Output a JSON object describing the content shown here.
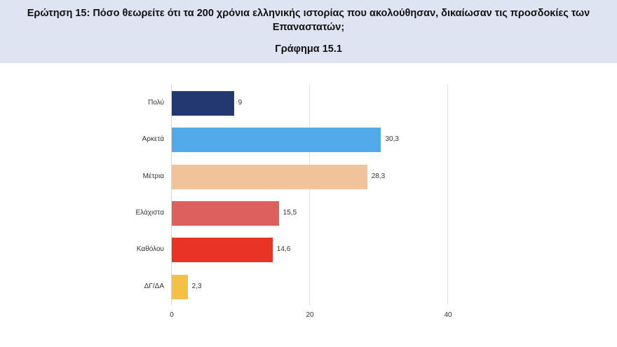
{
  "header": {
    "question": "Ερώτηση 15: Πόσο θεωρείτε ότι τα 200 χρόνια ελληνικής ιστορίας που ακολούθησαν, δικαίωσαν τις προσδοκίες των Επαναστατών;",
    "subtitle": "Γράφημα 15.1",
    "background": "#dfe4f2"
  },
  "chart_data": {
    "type": "bar",
    "orientation": "horizontal",
    "title": "Γράφημα 15.1",
    "categories": [
      "Πολύ",
      "Αρκετά",
      "Μέτρια",
      "Ελάχιστα",
      "Καθόλου",
      "ΔΓ/ΔΑ"
    ],
    "values": [
      9,
      30.3,
      28.3,
      15.5,
      14.6,
      2.3
    ],
    "value_labels": [
      "9",
      "30,3",
      "28,3",
      "15,5",
      "14,6",
      "2,3"
    ],
    "colors": [
      "#23386f",
      "#53aaea",
      "#f0c39a",
      "#dd605f",
      "#e83326",
      "#f3c143"
    ],
    "xlabel": "",
    "ylabel": "",
    "xlim": [
      0,
      40
    ],
    "xticks": [
      "0",
      "20",
      "40"
    ],
    "grid": true,
    "legend": null
  }
}
